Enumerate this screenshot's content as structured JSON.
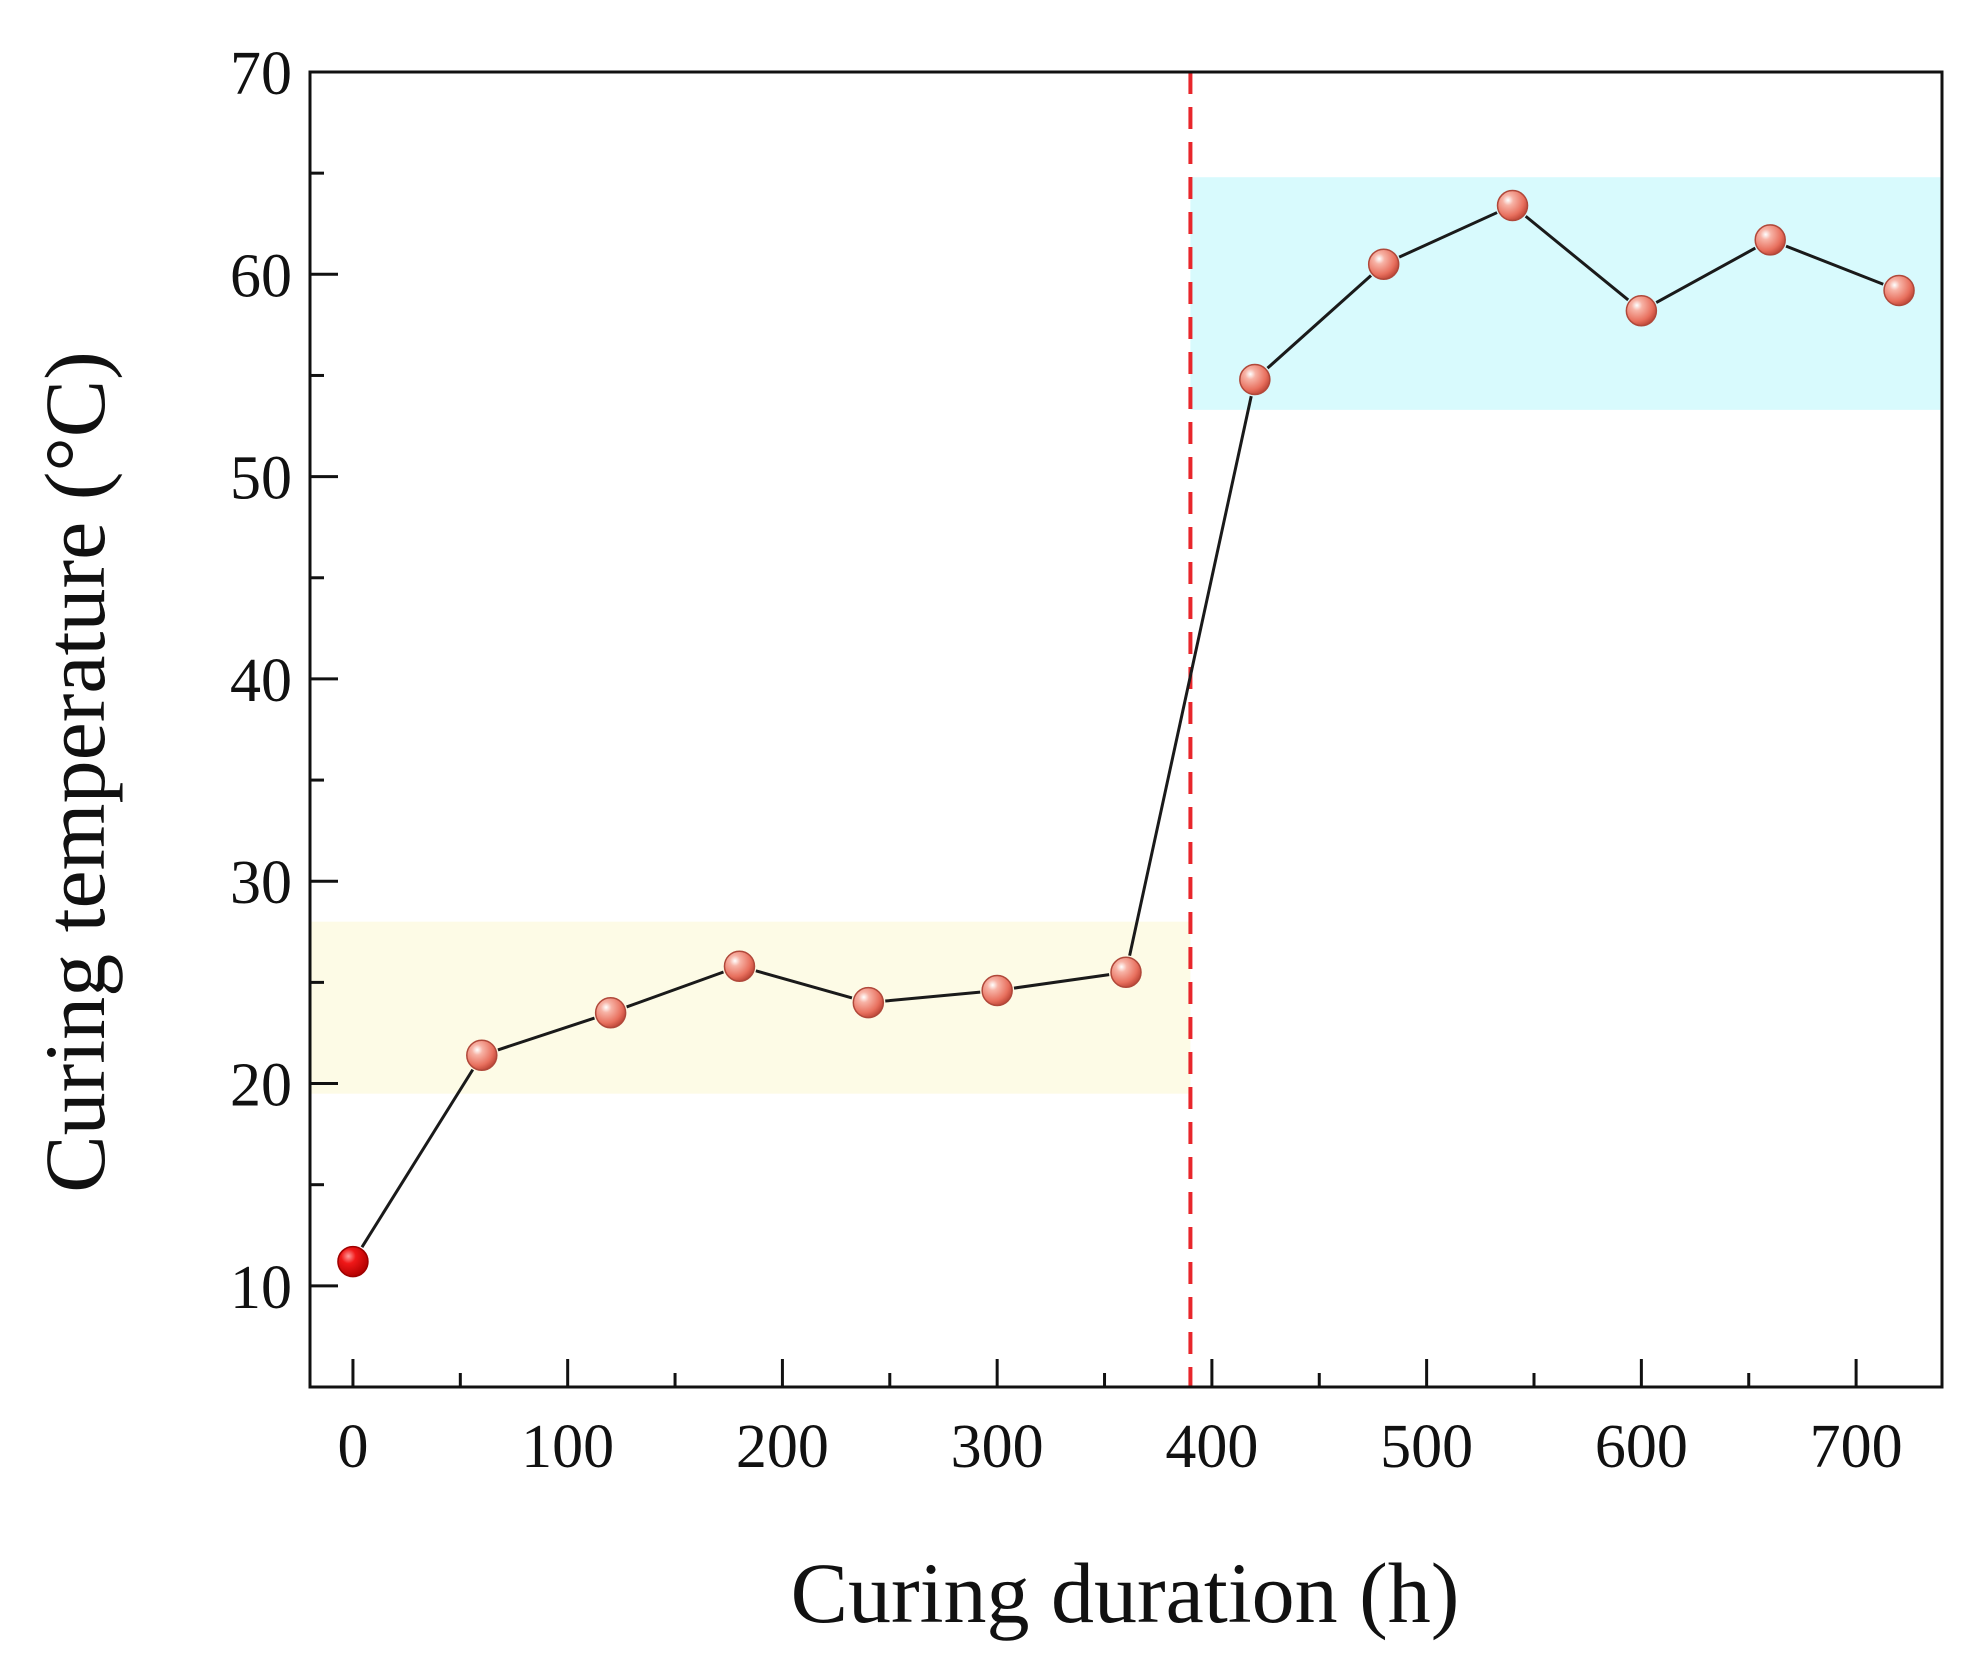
{
  "chart_data": {
    "type": "line",
    "title": "",
    "xlabel": "Curing duration (h)",
    "ylabel": "Curing temperature (°C)",
    "xlim": [
      -20,
      740
    ],
    "ylim": [
      5,
      70
    ],
    "xticks": [
      0,
      100,
      200,
      300,
      400,
      500,
      600,
      700
    ],
    "yticks": [
      10,
      20,
      30,
      40,
      50,
      60,
      70
    ],
    "grid": false,
    "series": [
      {
        "name": "Curing temperature",
        "x": [
          0,
          60,
          120,
          180,
          240,
          300,
          360,
          420,
          480,
          540,
          600,
          660,
          720
        ],
        "y": [
          11.2,
          21.4,
          23.5,
          25.8,
          24.0,
          24.6,
          25.5,
          54.8,
          60.5,
          63.4,
          58.2,
          61.7,
          59.2
        ]
      }
    ],
    "annotations": {
      "vertical_line": {
        "x": 390,
        "style": "dashed",
        "color": "#e8262b"
      },
      "bands": [
        {
          "name": "ambient-band",
          "x": [
            -20,
            390
          ],
          "y": [
            19.5,
            28.0
          ],
          "color": "#fdfbe6"
        },
        {
          "name": "elevated-band",
          "x": [
            390,
            740
          ],
          "y": [
            53.3,
            64.8
          ],
          "color": "#d8fafd"
        }
      ]
    },
    "colors": {
      "line": "#1a1a1a",
      "marker": "#f08a78",
      "first_marker": "#e11b1b",
      "axis": "#111111"
    }
  }
}
